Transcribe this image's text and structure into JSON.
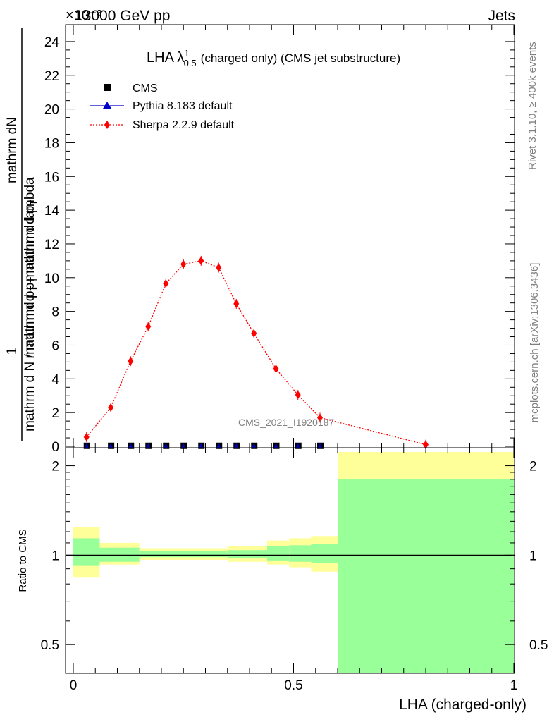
{
  "header": {
    "left": "13000 GeV pp",
    "right": "Jets",
    "exponent": "×10⁻³"
  },
  "side_text": {
    "rivet": "Rivet 3.1.10, ≥ 400k events",
    "mcplots": "mcplots.cern.ch [arXiv:1306.3436]"
  },
  "watermark": "CMS_2021_I1920187",
  "colors": {
    "sherpa": "#ff0000",
    "pythia": "#0000cc",
    "cms": "#000000",
    "band_outer": "#ffff99",
    "band_inner": "#99ff99"
  },
  "chart_data": [
    {
      "type": "scatter",
      "title_main": "LHA λ",
      "title_sup": "1",
      "title_sub": "0.5",
      "title_rest": "(charged only) (CMS jet substructure)",
      "ylabel_parts": {
        "one": "1",
        "numerator_top": "mathrm dN",
        "denominator_top": "mathrm d p",
        "denominator_top_sub": "T",
        "denominator_top_rest": "mathrm d lambda",
        "lower": "mathrm d N / mathrm d p",
        "lower_sub": "T",
        "lower_rest": "mathrm d p",
        "lower_rest_sub": "T",
        "lower_end": "mathrm d N / mathrm d p"
      },
      "ylabel_lines": {
        "top_a": "mathrm dN",
        "top_b": "mathrm d p",
        "top_b_sub": "T",
        "top_b_rest": " mathrm d lambda",
        "bottom_a": "mathrm d N / mathrm d p",
        "bottom_a_sub": "T",
        "bottom_a_rest": " mathrm d p",
        "bottom_a_rest_sub": "T",
        "bottom_a_end": " mathrm d N / mathrm d p"
      },
      "ylim": [
        0,
        25
      ],
      "yticks": [
        0,
        2,
        4,
        6,
        8,
        10,
        12,
        14,
        16,
        18,
        20,
        22,
        24
      ],
      "yticklabels": [
        "0",
        "2",
        "4",
        "6",
        "8",
        "10",
        "12",
        "14",
        "16",
        "18",
        "20",
        "22",
        "24"
      ],
      "xlim": [
        0,
        1
      ],
      "legend": [
        {
          "name": "CMS",
          "marker": "square"
        },
        {
          "name": "Pythia 8.183 default",
          "marker": "triangle"
        },
        {
          "name": "Sherpa 2.2.9 default",
          "marker": "diamond"
        }
      ],
      "series": [
        {
          "name": "Sherpa 2.2.9 default",
          "x": [
            0.03,
            0.085,
            0.13,
            0.17,
            0.21,
            0.25,
            0.29,
            0.33,
            0.37,
            0.41,
            0.46,
            0.51,
            0.56,
            0.8
          ],
          "values": [
            0.55,
            2.3,
            5.05,
            7.1,
            9.65,
            10.8,
            11.0,
            10.6,
            8.45,
            6.7,
            4.6,
            3.05,
            1.7,
            0.1
          ]
        },
        {
          "name": "CMS",
          "x": [
            0.03,
            0.085,
            0.13,
            0.17,
            0.21,
            0.25,
            0.29,
            0.33,
            0.37,
            0.41,
            0.46,
            0.51,
            0.56
          ],
          "values": [
            0.01,
            0.01,
            0.01,
            0.01,
            0.01,
            0.01,
            0.01,
            0.01,
            0.01,
            0.01,
            0.01,
            0.01,
            0.01
          ]
        }
      ]
    },
    {
      "type": "area",
      "ylabel": "Ratio to CMS",
      "xlabel": "LHA (charged-only)",
      "ylim": [
        0.4,
        2.3
      ],
      "yscale": "log",
      "yticks": [
        0.5,
        1,
        2
      ],
      "yticklabels": [
        "0.5",
        "1",
        "2"
      ],
      "xticks": [
        0,
        0.5,
        1
      ],
      "xticklabels": [
        "0",
        "0.5",
        "1"
      ],
      "bins": [
        {
          "lo": 0.0,
          "hi": 0.06,
          "outer": [
            0.84,
            1.24
          ],
          "inner": [
            0.92,
            1.14
          ]
        },
        {
          "lo": 0.06,
          "hi": 0.15,
          "outer": [
            0.93,
            1.1
          ],
          "inner": [
            0.95,
            1.06
          ]
        },
        {
          "lo": 0.15,
          "hi": 0.35,
          "outer": [
            0.965,
            1.055
          ],
          "inner": [
            0.985,
            1.03
          ]
        },
        {
          "lo": 0.35,
          "hi": 0.44,
          "outer": [
            0.95,
            1.07
          ],
          "inner": [
            0.975,
            1.04
          ]
        },
        {
          "lo": 0.44,
          "hi": 0.49,
          "outer": [
            0.93,
            1.12
          ],
          "inner": [
            0.96,
            1.07
          ]
        },
        {
          "lo": 0.49,
          "hi": 0.54,
          "outer": [
            0.91,
            1.14
          ],
          "inner": [
            0.95,
            1.08
          ]
        },
        {
          "lo": 0.54,
          "hi": 0.6,
          "outer": [
            0.88,
            1.16
          ],
          "inner": [
            0.94,
            1.09
          ]
        },
        {
          "lo": 0.6,
          "hi": 1.0,
          "outer": [
            0.4,
            2.3
          ],
          "inner": [
            0.4,
            1.8
          ]
        }
      ]
    }
  ]
}
